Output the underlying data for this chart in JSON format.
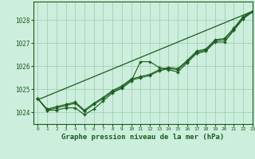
{
  "title": "Graphe pression niveau de la mer (hPa)",
  "background_color": "#cceedd",
  "grid_color": "#99ccaa",
  "line_color": "#1a5c1a",
  "xlim": [
    -0.5,
    23
  ],
  "ylim": [
    1023.5,
    1028.8
  ],
  "yticks": [
    1024,
    1025,
    1026,
    1027,
    1028
  ],
  "xticks": [
    0,
    1,
    2,
    3,
    4,
    5,
    6,
    7,
    8,
    9,
    10,
    11,
    12,
    13,
    14,
    15,
    16,
    17,
    18,
    19,
    20,
    21,
    22,
    23
  ],
  "series_main": [
    1024.6,
    1024.1,
    1024.1,
    1024.2,
    1024.2,
    1023.9,
    1024.15,
    1024.5,
    1024.85,
    1025.05,
    1025.35,
    1026.2,
    1026.2,
    1025.95,
    1025.85,
    1025.75,
    1026.15,
    1026.55,
    1026.65,
    1027.05,
    1027.05,
    1027.55,
    1028.05,
    1028.35
  ],
  "series_smooth1": [
    1024.6,
    1024.15,
    1024.25,
    1024.35,
    1024.45,
    1024.1,
    1024.4,
    1024.65,
    1024.95,
    1025.15,
    1025.45,
    1025.55,
    1025.65,
    1025.85,
    1025.95,
    1025.9,
    1026.25,
    1026.65,
    1026.75,
    1027.15,
    1027.2,
    1027.65,
    1028.15,
    1028.38
  ],
  "series_smooth2": [
    1024.6,
    1024.1,
    1024.2,
    1024.3,
    1024.4,
    1024.05,
    1024.35,
    1024.6,
    1024.9,
    1025.1,
    1025.4,
    1025.5,
    1025.6,
    1025.8,
    1025.9,
    1025.85,
    1026.2,
    1026.6,
    1026.7,
    1027.1,
    1027.15,
    1027.6,
    1028.1,
    1028.36
  ],
  "trend_line": [
    1024.55,
    1028.38
  ]
}
